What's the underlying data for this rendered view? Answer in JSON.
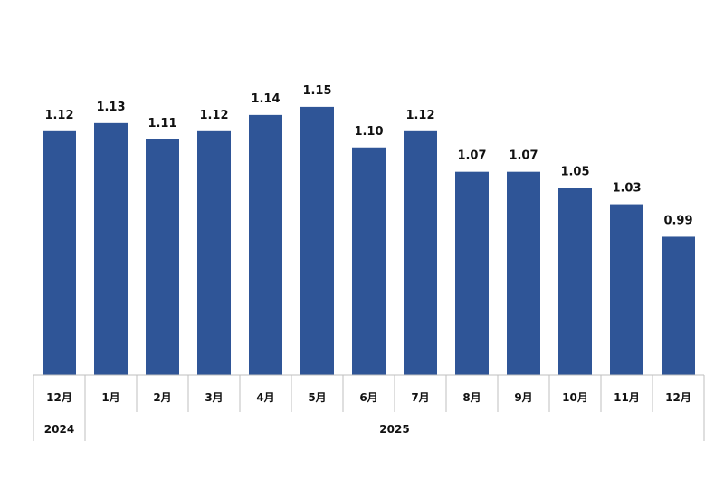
{
  "chart_data": {
    "type": "bar",
    "categories": [
      "12月",
      "1月",
      "2月",
      "3月",
      "4月",
      "5月",
      "6月",
      "7月",
      "8月",
      "9月",
      "10月",
      "11月",
      "12月"
    ],
    "values": [
      1.12,
      1.13,
      1.11,
      1.12,
      1.14,
      1.15,
      1.1,
      1.12,
      1.07,
      1.07,
      1.05,
      1.03,
      0.99
    ],
    "value_labels": [
      "1.12",
      "1.13",
      "1.11",
      "1.12",
      "1.14",
      "1.15",
      "1.10",
      "1.12",
      "1.07",
      "1.07",
      "1.05",
      "1.03",
      "0.99"
    ],
    "year_groups": [
      {
        "label": "2024",
        "span": 1
      },
      {
        "label": "2025",
        "span": 12
      }
    ],
    "ylim": [
      0.82,
      1.19
    ],
    "grid": false,
    "legend": "none",
    "title": "",
    "xlabel": "",
    "ylabel": "",
    "bar_color": "#2F5597",
    "axis_color": "#BFBFBF"
  }
}
